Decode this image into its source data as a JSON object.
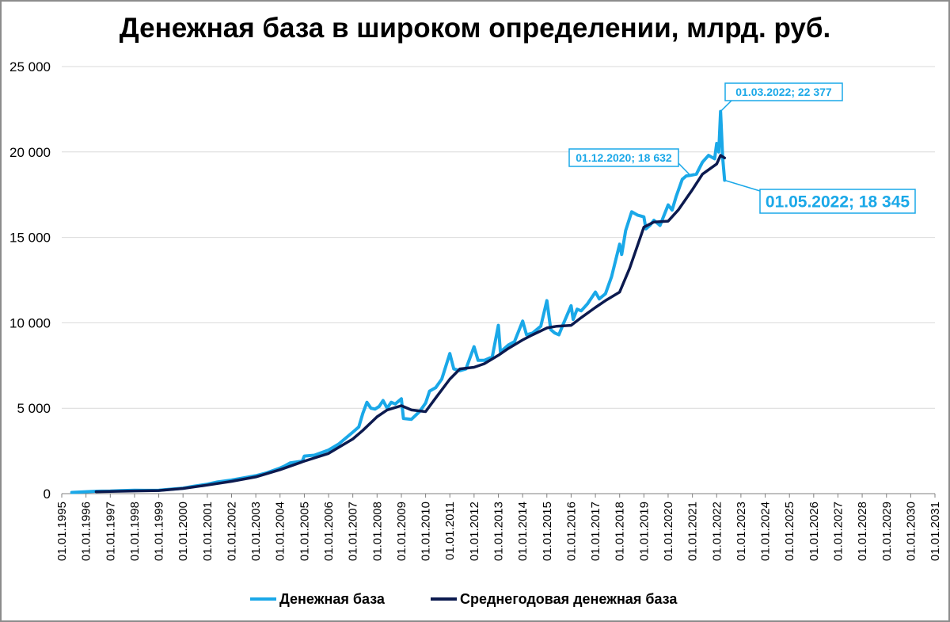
{
  "chart_data": {
    "type": "line",
    "title": "Денежная база в широком определении, млрд. руб.",
    "y_axis": {
      "min": 0,
      "max": 25000,
      "ticks": [
        0,
        5000,
        10000,
        15000,
        20000,
        25000
      ],
      "tick_labels": [
        "0",
        "5 000",
        "10 000",
        "15 000",
        "20 000",
        "25 000"
      ],
      "gridlines": true
    },
    "x_axis": {
      "type": "date",
      "min": "1995-01-01",
      "max": "2031-01-01",
      "tick_labels": [
        "01.01.1995",
        "01.01.1996",
        "01.01.1997",
        "01.01.1998",
        "01.01.1999",
        "01.01.2000",
        "01.01.2001",
        "01.01.2002",
        "01.01.2003",
        "01.01.2004",
        "01.01.2005",
        "01.01.2006",
        "01.01.2007",
        "01.01.2008",
        "01.01.2009",
        "01.01.2010",
        "01.01.2011",
        "01.01.2012",
        "01.01.2013",
        "01.01.2014",
        "01.01.2015",
        "01.01.2016",
        "01.01.2017",
        "01.01.2018",
        "01.01.2019",
        "01.01.2020",
        "01.01.2021",
        "01.01.2022",
        "01.01.2023",
        "01.01.2024",
        "01.01.2025",
        "01.01.2026",
        "01.01.2027",
        "01.01.2028",
        "01.01.2029",
        "01.01.2030",
        "01.01.2031"
      ]
    },
    "legend_position": "bottom",
    "series": [
      {
        "name": "Денежная база",
        "color": "#1aa8e8",
        "points": [
          [
            "1995-06-01",
            70
          ],
          [
            "1996-01-01",
            110
          ],
          [
            "1996-06-01",
            140
          ],
          [
            "1997-01-01",
            150
          ],
          [
            "1997-06-01",
            170
          ],
          [
            "1998-01-01",
            200
          ],
          [
            "1998-06-01",
            190
          ],
          [
            "1999-01-01",
            200
          ],
          [
            "1999-06-01",
            250
          ],
          [
            "2000-01-01",
            320
          ],
          [
            "2000-06-01",
            420
          ],
          [
            "2001-01-01",
            550
          ],
          [
            "2001-06-01",
            680
          ],
          [
            "2002-01-01",
            800
          ],
          [
            "2002-06-01",
            900
          ],
          [
            "2003-01-01",
            1050
          ],
          [
            "2003-06-01",
            1200
          ],
          [
            "2004-01-01",
            1500
          ],
          [
            "2004-03-01",
            1600
          ],
          [
            "2004-06-01",
            1800
          ],
          [
            "2004-12-01",
            1900
          ],
          [
            "2005-01-01",
            2200
          ],
          [
            "2005-06-01",
            2250
          ],
          [
            "2006-01-01",
            2550
          ],
          [
            "2006-06-01",
            2900
          ],
          [
            "2007-01-01",
            3600
          ],
          [
            "2007-04-01",
            3900
          ],
          [
            "2007-06-01",
            4700
          ],
          [
            "2007-08-01",
            5350
          ],
          [
            "2007-10-01",
            5000
          ],
          [
            "2007-12-01",
            4950
          ],
          [
            "2008-02-01",
            5100
          ],
          [
            "2008-04-01",
            5450
          ],
          [
            "2008-06-01",
            5000
          ],
          [
            "2008-08-01",
            5350
          ],
          [
            "2008-10-01",
            5250
          ],
          [
            "2009-01-01",
            5550
          ],
          [
            "2009-02-01",
            4400
          ],
          [
            "2009-06-01",
            4350
          ],
          [
            "2009-10-01",
            4800
          ],
          [
            "2010-01-01",
            5300
          ],
          [
            "2010-03-01",
            6000
          ],
          [
            "2010-06-01",
            6200
          ],
          [
            "2010-09-01",
            6700
          ],
          [
            "2011-01-01",
            8200
          ],
          [
            "2011-03-01",
            7300
          ],
          [
            "2011-06-01",
            7200
          ],
          [
            "2011-09-01",
            7300
          ],
          [
            "2012-01-01",
            8600
          ],
          [
            "2012-03-01",
            7800
          ],
          [
            "2012-06-01",
            7800
          ],
          [
            "2012-10-01",
            8000
          ],
          [
            "2013-01-01",
            9850
          ],
          [
            "2013-02-01",
            8300
          ],
          [
            "2013-06-01",
            8700
          ],
          [
            "2013-09-01",
            8900
          ],
          [
            "2014-01-01",
            10100
          ],
          [
            "2014-03-01",
            9300
          ],
          [
            "2014-06-01",
            9400
          ],
          [
            "2014-10-01",
            9800
          ],
          [
            "2015-01-01",
            11300
          ],
          [
            "2015-03-01",
            9600
          ],
          [
            "2015-05-01",
            9400
          ],
          [
            "2015-07-01",
            9300
          ],
          [
            "2015-09-01",
            9900
          ],
          [
            "2016-01-01",
            11000
          ],
          [
            "2016-02-01",
            10200
          ],
          [
            "2016-04-01",
            10800
          ],
          [
            "2016-06-01",
            10700
          ],
          [
            "2016-09-01",
            11100
          ],
          [
            "2017-01-01",
            11800
          ],
          [
            "2017-03-01",
            11400
          ],
          [
            "2017-06-01",
            11700
          ],
          [
            "2017-09-01",
            12700
          ],
          [
            "2018-01-01",
            14600
          ],
          [
            "2018-02-01",
            14000
          ],
          [
            "2018-04-01",
            15400
          ],
          [
            "2018-07-01",
            16500
          ],
          [
            "2018-10-01",
            16300
          ],
          [
            "2019-01-01",
            16200
          ],
          [
            "2019-02-01",
            15500
          ],
          [
            "2019-04-01",
            15700
          ],
          [
            "2019-06-01",
            16000
          ],
          [
            "2019-09-01",
            15700
          ],
          [
            "2020-01-01",
            16900
          ],
          [
            "2020-03-01",
            16600
          ],
          [
            "2020-05-01",
            17400
          ],
          [
            "2020-08-01",
            18400
          ],
          [
            "2020-10-01",
            18600
          ],
          [
            "2020-12-01",
            18632
          ],
          [
            "2021-03-01",
            18700
          ],
          [
            "2021-06-01",
            19400
          ],
          [
            "2021-09-01",
            19800
          ],
          [
            "2021-12-01",
            19600
          ],
          [
            "2022-01-01",
            20500
          ],
          [
            "2022-02-01",
            20000
          ],
          [
            "2022-03-01",
            22377
          ],
          [
            "2022-04-01",
            19700
          ],
          [
            "2022-05-01",
            18345
          ]
        ]
      },
      {
        "name": "Среднегодовая денежная база",
        "color": "#0c1a4f",
        "points": [
          [
            "1996-06-01",
            110
          ],
          [
            "1997-01-01",
            130
          ],
          [
            "1998-01-01",
            160
          ],
          [
            "1999-01-01",
            180
          ],
          [
            "2000-01-01",
            300
          ],
          [
            "2001-01-01",
            500
          ],
          [
            "2002-01-01",
            720
          ],
          [
            "2003-01-01",
            980
          ],
          [
            "2004-01-01",
            1400
          ],
          [
            "2005-01-01",
            1900
          ],
          [
            "2006-01-01",
            2350
          ],
          [
            "2007-01-01",
            3200
          ],
          [
            "2007-06-01",
            3700
          ],
          [
            "2008-01-01",
            4500
          ],
          [
            "2008-06-01",
            4900
          ],
          [
            "2009-01-01",
            5150
          ],
          [
            "2009-06-01",
            4900
          ],
          [
            "2010-01-01",
            4800
          ],
          [
            "2010-06-01",
            5600
          ],
          [
            "2011-01-01",
            6700
          ],
          [
            "2011-06-01",
            7300
          ],
          [
            "2012-01-01",
            7400
          ],
          [
            "2012-06-01",
            7600
          ],
          [
            "2013-01-01",
            8100
          ],
          [
            "2013-06-01",
            8500
          ],
          [
            "2014-01-01",
            9000
          ],
          [
            "2014-06-01",
            9300
          ],
          [
            "2015-01-01",
            9700
          ],
          [
            "2015-06-01",
            9800
          ],
          [
            "2016-01-01",
            9850
          ],
          [
            "2016-06-01",
            10300
          ],
          [
            "2017-01-01",
            10900
          ],
          [
            "2017-06-01",
            11300
          ],
          [
            "2018-01-01",
            11800
          ],
          [
            "2018-06-01",
            13200
          ],
          [
            "2019-01-01",
            15600
          ],
          [
            "2019-06-01",
            15900
          ],
          [
            "2020-01-01",
            15950
          ],
          [
            "2020-06-01",
            16600
          ],
          [
            "2021-01-01",
            17800
          ],
          [
            "2021-06-01",
            18700
          ],
          [
            "2022-01-01",
            19300
          ],
          [
            "2022-03-01",
            19800
          ],
          [
            "2022-05-01",
            19650
          ]
        ]
      }
    ],
    "annotations": [
      {
        "label": "01.03.2022;  22 377",
        "date": "2022-03-01",
        "value": 22377,
        "style": "small"
      },
      {
        "label": "01.12.2020;  18 632",
        "date": "2020-12-01",
        "value": 18632,
        "style": "small"
      },
      {
        "label": "01.05.2022;  18 345",
        "date": "2022-05-01",
        "value": 18345,
        "style": "large"
      }
    ]
  }
}
